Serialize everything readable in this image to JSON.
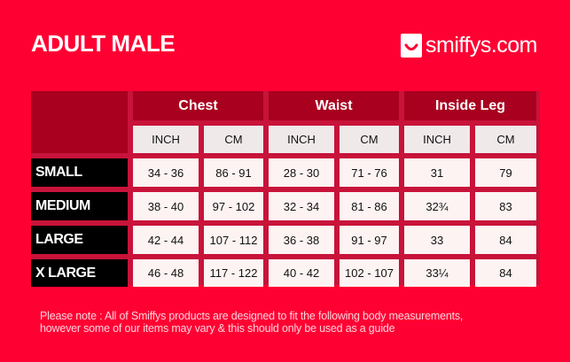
{
  "title": "ADULT MALE",
  "logo": {
    "text": "smiffys.com",
    "icon": "smile-icon"
  },
  "colors": {
    "background": "#ff0033",
    "header": "#a8001e",
    "label": "#000000",
    "cell": "#fdf3f3"
  },
  "table": {
    "groups": [
      "Chest",
      "Waist",
      "Inside Leg"
    ],
    "units": [
      "INCH",
      "CM",
      "INCH",
      "CM",
      "INCH",
      "CM"
    ],
    "rows": [
      {
        "size": "SMALL",
        "values": [
          "34 - 36",
          "86 - 91",
          "28 - 30",
          "71 - 76",
          "31",
          "79"
        ]
      },
      {
        "size": "MEDIUM",
        "values": [
          "38 - 40",
          "97 - 102",
          "32 - 34",
          "81 - 86",
          "32¾",
          "83"
        ]
      },
      {
        "size": "LARGE",
        "values": [
          "42 - 44",
          "107 - 112",
          "36 - 38",
          "91 - 97",
          "33",
          "84"
        ]
      },
      {
        "size": "X LARGE",
        "values": [
          "46 - 48",
          "117 - 122",
          "40 - 42",
          "102 - 107",
          "33¼",
          "84"
        ]
      }
    ]
  },
  "note": {
    "line1": "Please note : All of Smiffys products are designed to fit the following body measurements,",
    "line2": "however some of our items may vary & this should only be used as a guide"
  }
}
